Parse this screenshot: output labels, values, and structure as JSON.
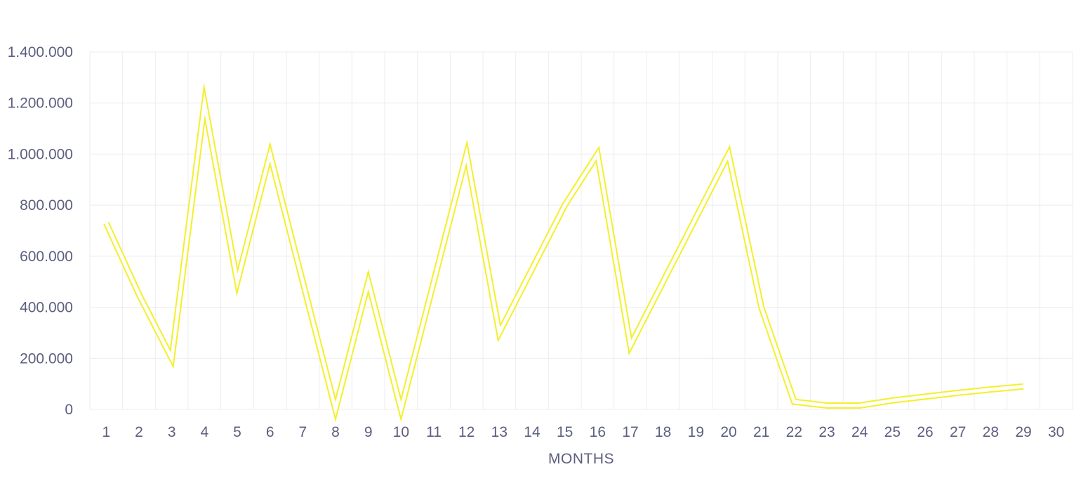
{
  "chart_data": {
    "type": "line",
    "title": "",
    "xlabel": "MONTHS",
    "ylabel": "",
    "ylim": [
      0,
      1400000
    ],
    "yticks": [
      0,
      200000,
      400000,
      600000,
      800000,
      1000000,
      1200000,
      1400000
    ],
    "ytick_labels": [
      "0",
      "200.000",
      "400.000",
      "600.000",
      "800.000",
      "1.000.000",
      "1.200.000",
      "1.400.000"
    ],
    "categories": [
      "1",
      "2",
      "3",
      "4",
      "5",
      "6",
      "7",
      "8",
      "9",
      "10",
      "11",
      "12",
      "13",
      "14",
      "15",
      "16",
      "17",
      "18",
      "19",
      "20",
      "21",
      "22",
      "23",
      "24",
      "25",
      "26",
      "27",
      "28",
      "29",
      "30"
    ],
    "grid": true,
    "legend": "none",
    "series": [
      {
        "color": "#f5ef2a",
        "style": "double-line",
        "values": [
          730000,
          450000,
          200000,
          1200000,
          500000,
          1000000,
          500000,
          0,
          500000,
          0,
          500000,
          1000000,
          300000,
          550000,
          800000,
          1000000,
          250000,
          500000,
          750000,
          1000000,
          400000,
          30000,
          15000,
          15000,
          35000,
          50000,
          65000,
          78000,
          90000,
          null
        ]
      }
    ]
  },
  "colors": {
    "grid": "#ececf1",
    "text": "#5c5f80",
    "line": "#f5ef2a",
    "background": "#ffffff"
  }
}
